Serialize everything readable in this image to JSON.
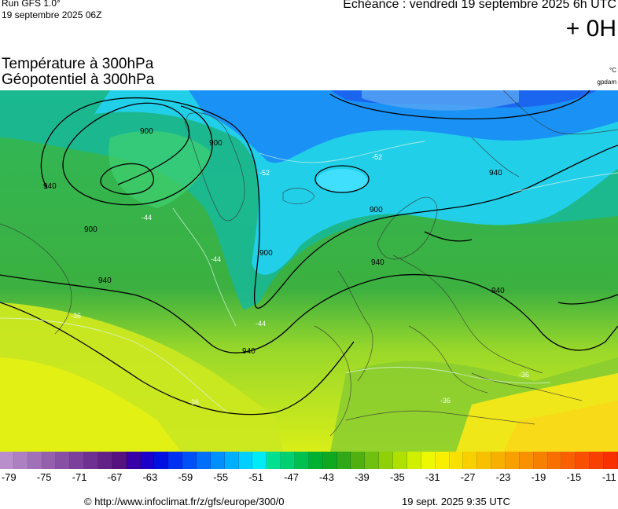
{
  "header": {
    "run_title": "Run GFS 1.0°",
    "run_date": "19 septembre 2025 06Z",
    "echeance": "Echéance : vendredi 19 septembre 2025 6h UTC",
    "offset": "+ 0H"
  },
  "params": {
    "line1": "Température à 300hPa",
    "line2": "Géopotentiel à 300hPa",
    "unit1": "°C",
    "unit2": "gpdam"
  },
  "map": {
    "contour_labels": [
      "900",
      "900",
      "900",
      "900",
      "900",
      "940",
      "940",
      "940",
      "940",
      "940",
      "940"
    ],
    "temp_labels": [
      "-44",
      "-44",
      "-44",
      "-52",
      "-52",
      "-36",
      "-36",
      "-36",
      "-36"
    ]
  },
  "colorbar": {
    "min": -80,
    "max": -10,
    "tick_labels": [
      "-79",
      "-75",
      "-71",
      "-67",
      "-63",
      "-59",
      "-55",
      "-51",
      "-47",
      "-43",
      "-39",
      "-35",
      "-31",
      "-27",
      "-23",
      "-19",
      "-15",
      "-11"
    ],
    "colors": [
      "#b98fcb",
      "#ad80c1",
      "#a070b8",
      "#9460ae",
      "#8750a4",
      "#7b409b",
      "#6e3191",
      "#622187",
      "#56127e",
      "#3a00a8",
      "#1a00c8",
      "#0010e0",
      "#0030f0",
      "#0050f8",
      "#0070fb",
      "#0090fd",
      "#00b0ff",
      "#00d0ff",
      "#00eaf8",
      "#00e090",
      "#00d070",
      "#00c050",
      "#00b030",
      "#10a820",
      "#30a818",
      "#50b010",
      "#70c010",
      "#90d008",
      "#b0e000",
      "#d0f000",
      "#eef800",
      "#f8f000",
      "#f8e000",
      "#f8d000",
      "#f8c000",
      "#f8b000",
      "#f8a000",
      "#f89000",
      "#f88000",
      "#f87000",
      "#f86000",
      "#f85000",
      "#f84000",
      "#f83000"
    ]
  },
  "footer": {
    "url": "© http://www.infoclimat.fr/z/gfs/europe/300/0",
    "timestamp": "19 sept. 2025  9:35 UTC"
  }
}
